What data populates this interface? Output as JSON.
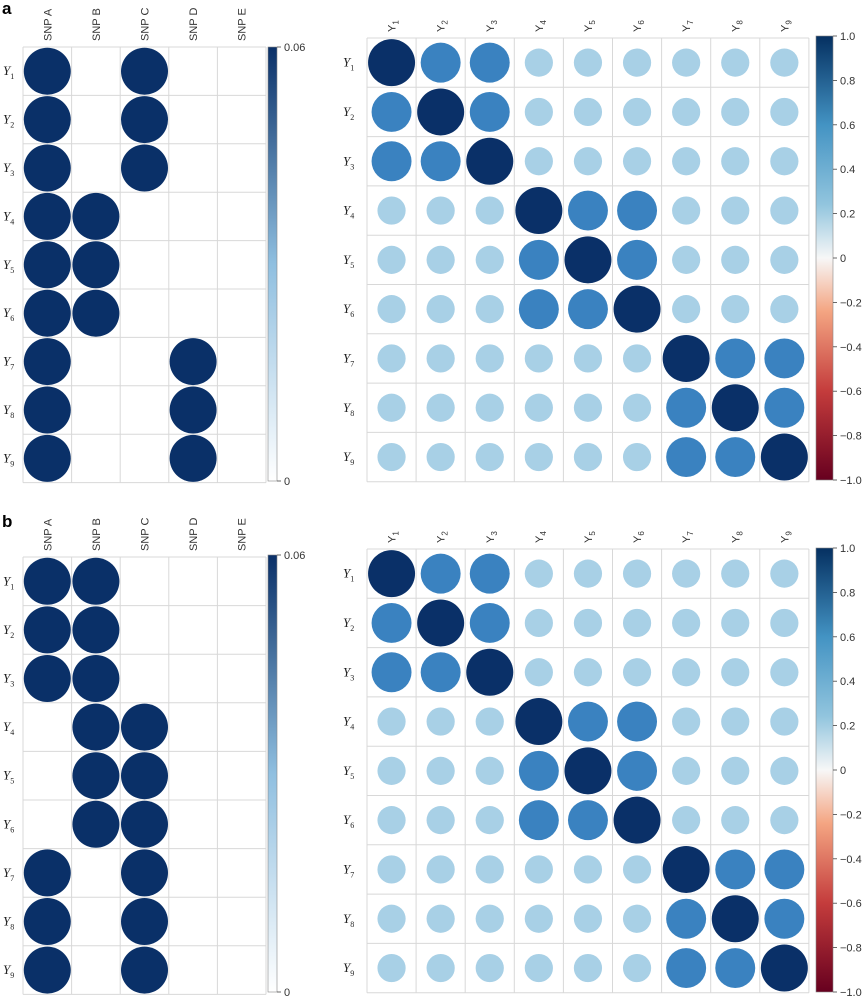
{
  "chart_data": [
    {
      "type": "heatmap",
      "panel": "a",
      "columns": [
        "SNP A",
        "SNP B",
        "SNP C",
        "SNP D",
        "SNP E"
      ],
      "rows": [
        "Y1",
        "Y2",
        "Y3",
        "Y4",
        "Y5",
        "Y6",
        "Y7",
        "Y8",
        "Y9"
      ],
      "values": [
        [
          0.06,
          0,
          0.06,
          0,
          0
        ],
        [
          0.06,
          0,
          0.06,
          0,
          0
        ],
        [
          0.06,
          0,
          0.06,
          0,
          0
        ],
        [
          0.06,
          0.06,
          0,
          0,
          0
        ],
        [
          0.06,
          0.06,
          0,
          0,
          0
        ],
        [
          0.06,
          0.06,
          0,
          0,
          0
        ],
        [
          0.06,
          0,
          0,
          0.06,
          0
        ],
        [
          0.06,
          0,
          0,
          0.06,
          0
        ],
        [
          0.06,
          0,
          0,
          0.06,
          0
        ]
      ],
      "colorbar": {
        "ticks": [
          "0.06",
          "0"
        ],
        "range": [
          0,
          0.06
        ]
      }
    },
    {
      "type": "heatmap",
      "panel": "a",
      "columns": [
        "Y1",
        "Y2",
        "Y3",
        "Y4",
        "Y5",
        "Y6",
        "Y7",
        "Y8",
        "Y9"
      ],
      "rows": [
        "Y1",
        "Y2",
        "Y3",
        "Y4",
        "Y5",
        "Y6",
        "Y7",
        "Y8",
        "Y9"
      ],
      "values": [
        [
          1.0,
          0.7,
          0.7,
          0.3,
          0.3,
          0.3,
          0.3,
          0.3,
          0.3
        ],
        [
          0.7,
          1.0,
          0.7,
          0.3,
          0.3,
          0.3,
          0.3,
          0.3,
          0.3
        ],
        [
          0.7,
          0.7,
          1.0,
          0.3,
          0.3,
          0.3,
          0.3,
          0.3,
          0.3
        ],
        [
          0.3,
          0.3,
          0.3,
          1.0,
          0.7,
          0.7,
          0.3,
          0.3,
          0.3
        ],
        [
          0.3,
          0.3,
          0.3,
          0.7,
          1.0,
          0.7,
          0.3,
          0.3,
          0.3
        ],
        [
          0.3,
          0.3,
          0.3,
          0.7,
          0.7,
          1.0,
          0.3,
          0.3,
          0.3
        ],
        [
          0.3,
          0.3,
          0.3,
          0.3,
          0.3,
          0.3,
          1.0,
          0.7,
          0.7
        ],
        [
          0.3,
          0.3,
          0.3,
          0.3,
          0.3,
          0.3,
          0.7,
          1.0,
          0.7
        ],
        [
          0.3,
          0.3,
          0.3,
          0.3,
          0.3,
          0.3,
          0.7,
          0.7,
          1.0
        ]
      ],
      "colorbar": {
        "ticks": [
          "1.0",
          "0.8",
          "0.6",
          "0.4",
          "0.2",
          "0",
          "−0.2",
          "−0.4",
          "−0.6",
          "−0.8",
          "−1.0"
        ],
        "range": [
          -1,
          1
        ]
      }
    },
    {
      "type": "heatmap",
      "panel": "b",
      "columns": [
        "SNP A",
        "SNP B",
        "SNP C",
        "SNP D",
        "SNP E"
      ],
      "rows": [
        "Y1",
        "Y2",
        "Y3",
        "Y4",
        "Y5",
        "Y6",
        "Y7",
        "Y8",
        "Y9"
      ],
      "values": [
        [
          0.06,
          0.06,
          0,
          0,
          0
        ],
        [
          0.06,
          0.06,
          0,
          0,
          0
        ],
        [
          0.06,
          0.06,
          0,
          0,
          0
        ],
        [
          0,
          0.06,
          0.06,
          0,
          0
        ],
        [
          0,
          0.06,
          0.06,
          0,
          0
        ],
        [
          0,
          0.06,
          0.06,
          0,
          0
        ],
        [
          0.06,
          0,
          0.06,
          0,
          0
        ],
        [
          0.06,
          0,
          0.06,
          0,
          0
        ],
        [
          0.06,
          0,
          0.06,
          0,
          0
        ]
      ],
      "colorbar": {
        "ticks": [
          "0.06",
          "0"
        ],
        "range": [
          0,
          0.06
        ]
      }
    },
    {
      "type": "heatmap",
      "panel": "b",
      "columns": [
        "Y1",
        "Y2",
        "Y3",
        "Y4",
        "Y5",
        "Y6",
        "Y7",
        "Y8",
        "Y9"
      ],
      "rows": [
        "Y1",
        "Y2",
        "Y3",
        "Y4",
        "Y5",
        "Y6",
        "Y7",
        "Y8",
        "Y9"
      ],
      "values": [
        [
          1.0,
          0.7,
          0.7,
          0.3,
          0.3,
          0.3,
          0.3,
          0.3,
          0.3
        ],
        [
          0.7,
          1.0,
          0.7,
          0.3,
          0.3,
          0.3,
          0.3,
          0.3,
          0.3
        ],
        [
          0.7,
          0.7,
          1.0,
          0.3,
          0.3,
          0.3,
          0.3,
          0.3,
          0.3
        ],
        [
          0.3,
          0.3,
          0.3,
          1.0,
          0.7,
          0.7,
          0.3,
          0.3,
          0.3
        ],
        [
          0.3,
          0.3,
          0.3,
          0.7,
          1.0,
          0.7,
          0.3,
          0.3,
          0.3
        ],
        [
          0.3,
          0.3,
          0.3,
          0.7,
          0.7,
          1.0,
          0.3,
          0.3,
          0.3
        ],
        [
          0.3,
          0.3,
          0.3,
          0.3,
          0.3,
          0.3,
          1.0,
          0.7,
          0.7
        ],
        [
          0.3,
          0.3,
          0.3,
          0.3,
          0.3,
          0.3,
          0.7,
          1.0,
          0.7
        ],
        [
          0.3,
          0.3,
          0.3,
          0.3,
          0.3,
          0.3,
          0.7,
          0.7,
          1.0
        ]
      ],
      "colorbar": {
        "ticks": [
          "1.0",
          "0.8",
          "0.6",
          "0.4",
          "0.2",
          "0",
          "−0.2",
          "−0.4",
          "−0.6",
          "−0.8",
          "−1.0"
        ],
        "range": [
          -1,
          1
        ]
      }
    }
  ],
  "panels": {
    "a": "a",
    "b": "b"
  },
  "colors": {
    "dark": "#0a3068",
    "medium": "#3a82c0",
    "light": "#a8d0e6",
    "grid": "#d8d8d8",
    "negative_end": "#7a0a1e"
  }
}
